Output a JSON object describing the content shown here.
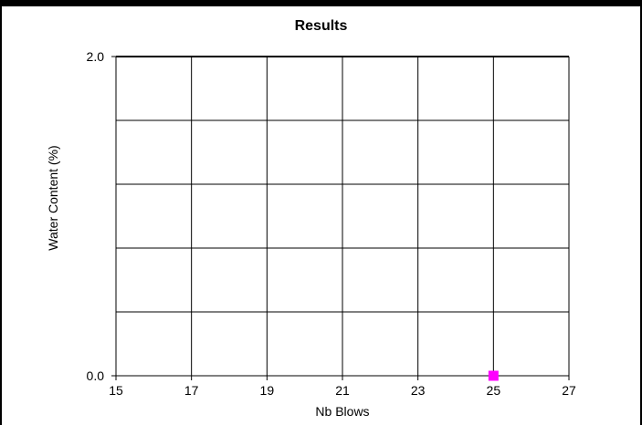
{
  "chart_data": {
    "type": "scatter",
    "title": "Results",
    "xlabel": "Nb Blows",
    "ylabel": "Water Content (%)",
    "xlim": [
      15,
      27
    ],
    "ylim": [
      0.0,
      2.0
    ],
    "x_ticks": [
      "15",
      "17",
      "19",
      "21",
      "23",
      "25",
      "27"
    ],
    "y_ticks": [
      "0.0",
      "2.0"
    ],
    "grid": true,
    "series": [
      {
        "color": "#ff00ff",
        "marker": "square",
        "points": [
          {
            "x": 25,
            "y": 0.0
          }
        ]
      }
    ]
  }
}
